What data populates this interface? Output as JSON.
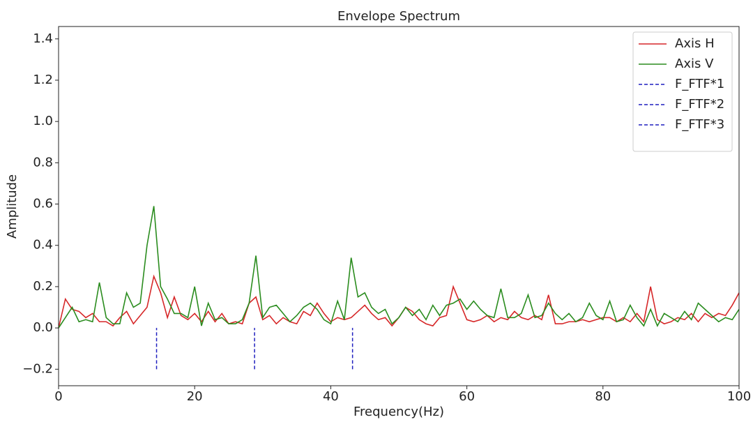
{
  "chart_data": {
    "type": "line",
    "title": "Envelope Spectrum",
    "xlabel": "Frequency(Hz)",
    "ylabel": "Amplitude",
    "x": [
      0,
      1,
      2,
      3,
      4,
      5,
      6,
      7,
      8,
      9,
      10,
      11,
      12,
      13,
      14,
      15,
      16,
      17,
      18,
      19,
      20,
      21,
      22,
      23,
      24,
      25,
      26,
      27,
      28,
      29,
      30,
      31,
      32,
      33,
      34,
      35,
      36,
      37,
      38,
      39,
      40,
      41,
      42,
      43,
      44,
      45,
      46,
      47,
      48,
      49,
      50,
      51,
      52,
      53,
      54,
      55,
      56,
      57,
      58,
      59,
      60,
      61,
      62,
      63,
      64,
      65,
      66,
      67,
      68,
      69,
      70,
      71,
      72,
      73,
      74,
      75,
      76,
      77,
      78,
      79,
      80,
      81,
      82,
      83,
      84,
      85,
      86,
      87,
      88,
      89,
      90,
      91,
      92,
      93,
      94,
      95,
      96,
      97,
      98,
      99,
      100
    ],
    "series": [
      {
        "name": "Axis H",
        "color": "#d62728",
        "values": [
          0.0,
          0.14,
          0.09,
          0.08,
          0.05,
          0.07,
          0.03,
          0.03,
          0.01,
          0.05,
          0.08,
          0.02,
          0.06,
          0.1,
          0.25,
          0.17,
          0.05,
          0.15,
          0.06,
          0.04,
          0.07,
          0.03,
          0.08,
          0.03,
          0.07,
          0.02,
          0.03,
          0.02,
          0.12,
          0.15,
          0.04,
          0.06,
          0.02,
          0.05,
          0.03,
          0.02,
          0.08,
          0.06,
          0.12,
          0.07,
          0.03,
          0.05,
          0.04,
          0.05,
          0.08,
          0.11,
          0.07,
          0.04,
          0.05,
          0.01,
          0.05,
          0.1,
          0.08,
          0.04,
          0.02,
          0.01,
          0.05,
          0.06,
          0.2,
          0.12,
          0.04,
          0.03,
          0.04,
          0.06,
          0.03,
          0.05,
          0.04,
          0.08,
          0.05,
          0.04,
          0.06,
          0.04,
          0.16,
          0.02,
          0.02,
          0.03,
          0.03,
          0.04,
          0.03,
          0.04,
          0.05,
          0.05,
          0.03,
          0.05,
          0.03,
          0.07,
          0.03,
          0.2,
          0.04,
          0.02,
          0.03,
          0.05,
          0.04,
          0.07,
          0.03,
          0.07,
          0.05,
          0.07,
          0.06,
          0.11,
          0.17
        ]
      },
      {
        "name": "Axis V",
        "color": "#2a8c1e",
        "values": [
          0.0,
          0.05,
          0.1,
          0.03,
          0.04,
          0.03,
          0.22,
          0.05,
          0.02,
          0.02,
          0.17,
          0.1,
          0.12,
          0.4,
          0.59,
          0.2,
          0.14,
          0.07,
          0.07,
          0.05,
          0.2,
          0.01,
          0.12,
          0.04,
          0.05,
          0.02,
          0.02,
          0.04,
          0.12,
          0.35,
          0.05,
          0.1,
          0.11,
          0.07,
          0.03,
          0.06,
          0.1,
          0.12,
          0.09,
          0.04,
          0.02,
          0.13,
          0.04,
          0.34,
          0.15,
          0.17,
          0.1,
          0.07,
          0.09,
          0.02,
          0.05,
          0.1,
          0.06,
          0.09,
          0.04,
          0.11,
          0.06,
          0.11,
          0.12,
          0.14,
          0.09,
          0.13,
          0.09,
          0.06,
          0.05,
          0.19,
          0.05,
          0.05,
          0.07,
          0.16,
          0.05,
          0.06,
          0.12,
          0.07,
          0.04,
          0.07,
          0.03,
          0.05,
          0.12,
          0.06,
          0.04,
          0.13,
          0.03,
          0.04,
          0.11,
          0.05,
          0.01,
          0.09,
          0.01,
          0.07,
          0.05,
          0.03,
          0.08,
          0.04,
          0.12,
          0.09,
          0.06,
          0.03,
          0.05,
          0.04,
          0.09
        ]
      }
    ],
    "vlines": [
      {
        "name": "F_FTF*1",
        "color": "#1f1fbf",
        "x": 14.4,
        "ymin": -0.2,
        "ymax": 0
      },
      {
        "name": "F_FTF*2",
        "color": "#1f1fbf",
        "x": 28.8,
        "ymin": -0.2,
        "ymax": 0
      },
      {
        "name": "F_FTF*3",
        "color": "#1f1fbf",
        "x": 43.2,
        "ymin": -0.2,
        "ymax": 0
      }
    ],
    "xlim": [
      0,
      100
    ],
    "ylim": [
      -0.28,
      1.46
    ],
    "xticks": [
      0,
      20,
      40,
      60,
      80,
      100
    ],
    "yticks": [
      {
        "value": -0.2,
        "label": "−0.2"
      },
      {
        "value": 0,
        "label": "0.0"
      },
      0.2,
      0.4,
      0.6,
      0.8,
      {
        "value": 1,
        "label": "1.0"
      },
      1.2,
      1.4
    ],
    "legend": "upper right"
  }
}
